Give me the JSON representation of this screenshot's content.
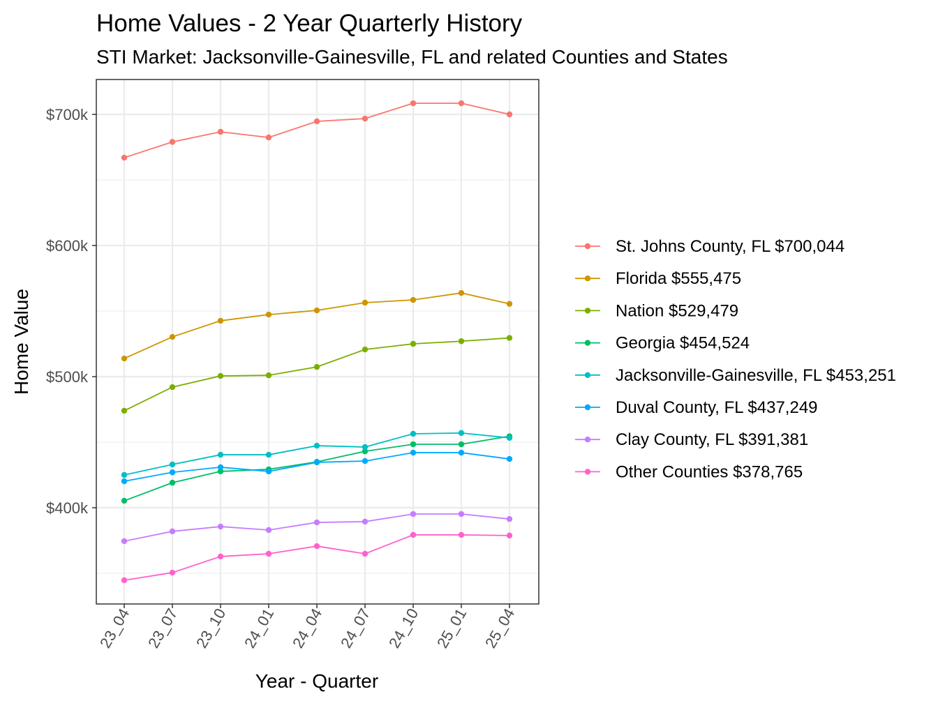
{
  "chart_data": {
    "type": "line",
    "title": "Home Values - 2 Year Quarterly History",
    "subtitle": "STI Market: Jacksonville-Gainesville, FL and related Counties and States",
    "xlabel": "Year - Quarter",
    "ylabel": "Home Value",
    "categories": [
      "23_04",
      "23_07",
      "23_10",
      "24_01",
      "24_04",
      "24_07",
      "24_10",
      "25_01",
      "25_04"
    ],
    "ylim": [
      326.6,
      726.6
    ],
    "y_unit": "thousand USD",
    "yticks": [
      400,
      500,
      600,
      700
    ],
    "ytick_labels": [
      "$400k",
      "$500k",
      "$600k",
      "$700k"
    ],
    "grid": true,
    "legend_position": "right",
    "series": [
      {
        "name": "St. Johns County, FL $700,044",
        "color": "#F8766D",
        "values": [
          667,
          679,
          686.7,
          682.4,
          694.7,
          696.8,
          708.5,
          708.5,
          700
        ]
      },
      {
        "name": "Florida $555,475",
        "color": "#CD9600",
        "values": [
          513.8,
          530.3,
          542.6,
          547.3,
          550.5,
          556.4,
          558.5,
          563.8,
          555.5
        ]
      },
      {
        "name": "Nation $529,479",
        "color": "#7CAE00",
        "values": [
          474,
          492,
          500.5,
          501,
          507.4,
          520.7,
          525,
          527,
          529.5
        ]
      },
      {
        "name": "Georgia $454,524",
        "color": "#00BE67",
        "values": [
          405.3,
          419.1,
          427.7,
          429.3,
          435,
          443,
          448.4,
          448.4,
          454.5
        ]
      },
      {
        "name": "Jacksonville-Gainesville, FL $453,251",
        "color": "#00BFC4",
        "values": [
          425,
          433,
          440.4,
          440.4,
          447.3,
          446.3,
          456.4,
          457,
          453.3
        ]
      },
      {
        "name": "Duval County, FL $437,249",
        "color": "#00A9FF",
        "values": [
          420.2,
          427,
          430.9,
          427.7,
          434.6,
          435.6,
          442,
          442,
          437.2
        ]
      },
      {
        "name": "Clay County, FL $391,381",
        "color": "#C77CFF",
        "values": [
          374.5,
          382,
          385.6,
          383,
          388.8,
          389.4,
          395.2,
          395.2,
          391.4
        ]
      },
      {
        "name": "Other Counties $378,765",
        "color": "#FF61CC",
        "values": [
          344.7,
          350.5,
          362.8,
          364.9,
          370.7,
          364.9,
          379.3,
          379.3,
          378.8
        ]
      }
    ]
  }
}
